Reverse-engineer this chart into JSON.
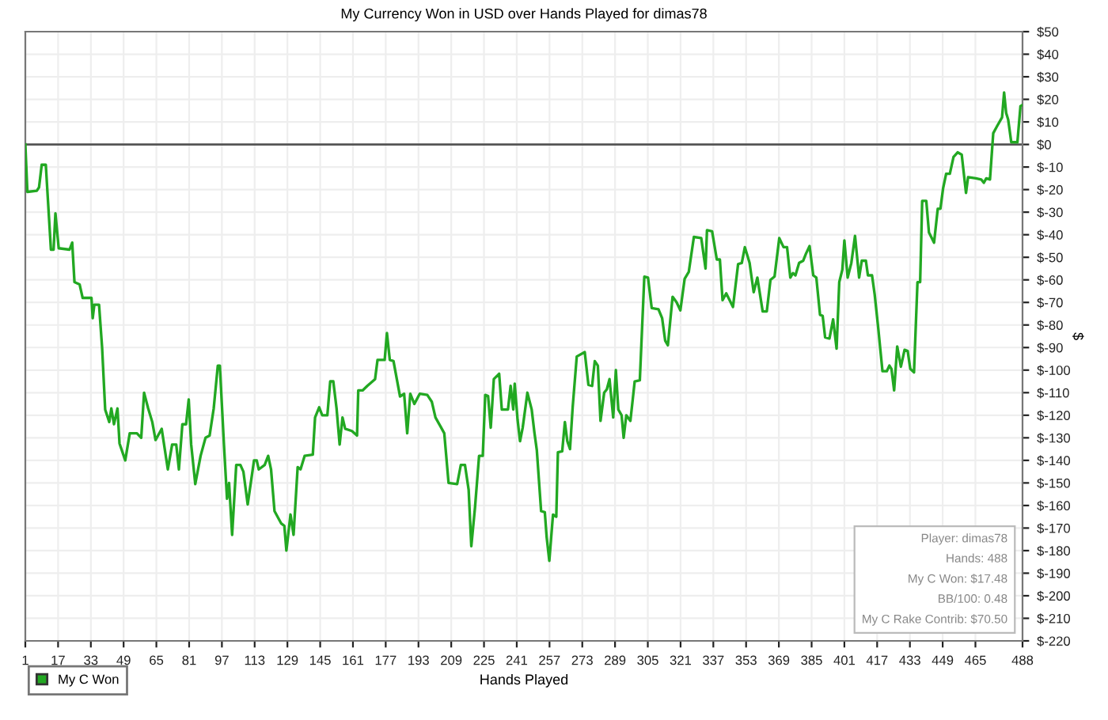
{
  "chart_data": {
    "type": "line",
    "title": "My Currency Won in USD over Hands Played for dimas78",
    "xlabel": "Hands Played",
    "ylabel": "$",
    "xlim": [
      1,
      488
    ],
    "xticks": [
      1,
      17,
      33,
      49,
      65,
      81,
      97,
      113,
      129,
      145,
      161,
      177,
      193,
      209,
      225,
      241,
      257,
      273,
      289,
      305,
      321,
      337,
      353,
      369,
      385,
      401,
      417,
      433,
      449,
      465,
      488
    ],
    "ylim": [
      -220,
      50
    ],
    "yticks": [
      {
        "value": 50,
        "label": "$50"
      },
      {
        "value": 40,
        "label": "$40"
      },
      {
        "value": 30,
        "label": "$30"
      },
      {
        "value": 20,
        "label": "$20"
      },
      {
        "value": 10,
        "label": "$10"
      },
      {
        "value": 0,
        "label": "$0"
      },
      {
        "value": -10,
        "label": "$-10"
      },
      {
        "value": -20,
        "label": "$-20"
      },
      {
        "value": -30,
        "label": "$-30"
      },
      {
        "value": -40,
        "label": "$-40"
      },
      {
        "value": -50,
        "label": "$-50"
      },
      {
        "value": -60,
        "label": "$-60"
      },
      {
        "value": -70,
        "label": "$-70"
      },
      {
        "value": -80,
        "label": "$-80"
      },
      {
        "value": -90,
        "label": "$-90"
      },
      {
        "value": -100,
        "label": "$-100"
      },
      {
        "value": -110,
        "label": "$-110"
      },
      {
        "value": -120,
        "label": "$-120"
      },
      {
        "value": -130,
        "label": "$-130"
      },
      {
        "value": -140,
        "label": "$-140"
      },
      {
        "value": -150,
        "label": "$-150"
      },
      {
        "value": -160,
        "label": "$-160"
      },
      {
        "value": -170,
        "label": "$-170"
      },
      {
        "value": -180,
        "label": "$-180"
      },
      {
        "value": -190,
        "label": "$-190"
      },
      {
        "value": -200,
        "label": "$-200"
      },
      {
        "value": -210,
        "label": "$-210"
      },
      {
        "value": -220,
        "label": "$-220"
      }
    ],
    "grid": true,
    "legend": "bottom left",
    "marker": "none",
    "line_style": "solid",
    "ref_lines": [
      {
        "axis": "y",
        "value": 0,
        "label": null,
        "color": "#555555"
      }
    ],
    "annotations": [
      "Player: dimas78",
      "Hands: 488",
      "My C Won: $17.48",
      "BB/100: 0.48",
      "My C Rake Contrib: $70.50"
    ],
    "series": [
      {
        "name": "My C Won",
        "color": "#22a822",
        "x": [
          1,
          2,
          6.6,
          7.7,
          9,
          11,
          13.5,
          14.8,
          15.7,
          17.3,
          22.6,
          23.9,
          25,
          27.5,
          29,
          33.3,
          33.9,
          34.7,
          37,
          38.5,
          40,
          42,
          43,
          44.3,
          46,
          47,
          49.8,
          52,
          55.5,
          57.6,
          59,
          61,
          63,
          64.6,
          67.6,
          70.6,
          72.7,
          74.7,
          76,
          77.7,
          79.5,
          80.8,
          82,
          84,
          86.6,
          89,
          91,
          93,
          95,
          96,
          98,
          99.5,
          100.5,
          102,
          104,
          106,
          107.5,
          109.6,
          112.7,
          114,
          115,
          117.9,
          119.6,
          121,
          122.7,
          126,
          127.5,
          128.5,
          130.5,
          132,
          134,
          135.4,
          137.4,
          141.4,
          142.5,
          144.5,
          146,
          148.5,
          149.9,
          151.4,
          153,
          154.5,
          155.9,
          157.2,
          160.5,
          163,
          163.6,
          165.7,
          168,
          171.8,
          173,
          176.5,
          177.6,
          179,
          180.8,
          184,
          186,
          187.5,
          189,
          191,
          193.6,
          197.3,
          199.5,
          201.3,
          203.8,
          205.6,
          207.7,
          211.9,
          213.7,
          215.7,
          217.5,
          218.8,
          220.6,
          222.6,
          224.4,
          225.6,
          227,
          228.3,
          229.8,
          232.4,
          233.7,
          236.7,
          238,
          239.3,
          240,
          241.4,
          242.6,
          243.9,
          246.2,
          248.3,
          249.6,
          250.8,
          252.9,
          254.7,
          255.6,
          256.9,
          258.7,
          260.3,
          261.1,
          263.2,
          264.5,
          265.7,
          267,
          268.3,
          270.3,
          274.2,
          276,
          277.8,
          279.1,
          280.6,
          281.9,
          283.7,
          285,
          286.3,
          288.1,
          289.4,
          290.6,
          292.2,
          293.2,
          294.5,
          296.5,
          298.6,
          301.1,
          303.3,
          305.1,
          306.9,
          310.2,
          312,
          313.5,
          314.8,
          317.1,
          319.1,
          320.9,
          323,
          325,
          327.5,
          331.1,
          333.2,
          333.9,
          336.4,
          338.7,
          340.2,
          341.5,
          343.3,
          346.6,
          349.1,
          350.9,
          352.4,
          354.7,
          356.7,
          358.5,
          361.1,
          363.1,
          364.9,
          366.9,
          369.2,
          371.3,
          373,
          374.6,
          375.9,
          377.1,
          378.9,
          380.9,
          382.2,
          384,
          385.8,
          387.3,
          389.1,
          390.4,
          391.6,
          393.7,
          395.5,
          397.2,
          398.5,
          400,
          401,
          402.6,
          404.4,
          406.2,
          408.2,
          409.5,
          411.5,
          412.5,
          414.5,
          415.8,
          417.6,
          419.6,
          421.7,
          423,
          424,
          425.3,
          426.8,
          428.6,
          430.4,
          431.9,
          433.2,
          435,
          436.7,
          438,
          439,
          441,
          442.3,
          444.8,
          446.6,
          447.9,
          449.2,
          450.7,
          452.5,
          454.3,
          456.3,
          458.3,
          460.4,
          461.4,
          465.2,
          467.8,
          469.1,
          470.3,
          472.1,
          473.7,
          475.5,
          478,
          479,
          480,
          481,
          482.5,
          485.5,
          487,
          488
        ],
        "values": [
          0,
          -21,
          -20.5,
          -19,
          -9,
          -9,
          -46.6,
          -46.6,
          -30.5,
          -46,
          -46.6,
          -43.5,
          -61,
          -62,
          -68,
          -68,
          -77,
          -71,
          -71,
          -90,
          -117.5,
          -123,
          -117,
          -124,
          -117,
          -132.5,
          -140,
          -128,
          -128,
          -130,
          -110,
          -117,
          -123,
          -131,
          -126,
          -144,
          -133,
          -133,
          -144,
          -124,
          -124,
          -113,
          -133,
          -150.5,
          -138,
          -130,
          -129,
          -117,
          -98,
          -98,
          -133,
          -157,
          -150,
          -173,
          -142,
          -142,
          -145,
          -159.5,
          -140,
          -140,
          -144,
          -142,
          -138,
          -144,
          -162.5,
          -168,
          -169,
          -180,
          -164,
          -173,
          -143,
          -144,
          -138,
          -137.5,
          -121,
          -116.5,
          -120,
          -120,
          -105,
          -105,
          -117,
          -133,
          -121,
          -126,
          -127,
          -129,
          -109,
          -109,
          -107,
          -104,
          -95.5,
          -95.5,
          -83.6,
          -95.5,
          -96,
          -111.7,
          -110.5,
          -128,
          -110.5,
          -115,
          -110.5,
          -111,
          -114,
          -121,
          -125,
          -128,
          -150,
          -150.5,
          -142,
          -142,
          -153,
          -178,
          -161,
          -138,
          -138,
          -111,
          -111.5,
          -125.5,
          -104,
          -101.6,
          -117.5,
          -117.5,
          -107,
          -117.5,
          -106,
          -122,
          -131.5,
          -125.5,
          -110,
          -117.5,
          -127.5,
          -135.5,
          -162.5,
          -163,
          -174,
          -184.5,
          -164,
          -165,
          -136.4,
          -136,
          -123,
          -131.5,
          -135,
          -116.5,
          -94,
          -92,
          -106.5,
          -107,
          -96,
          -98,
          -122.5,
          -110,
          -108.5,
          -104,
          -121,
          -100,
          -117.5,
          -120,
          -130,
          -120,
          -122.5,
          -105,
          -104.5,
          -58.6,
          -59,
          -72.5,
          -73,
          -77,
          -87,
          -89,
          -67.5,
          -70,
          -73.5,
          -59.5,
          -56.5,
          -41,
          -41.5,
          -55,
          -38,
          -38.5,
          -51,
          -51,
          -69,
          -66,
          -72,
          -53,
          -52.5,
          -45.5,
          -52.5,
          -65.5,
          -59,
          -74,
          -74,
          -60,
          -58.5,
          -41.5,
          -45.5,
          -45.5,
          -59,
          -57,
          -58,
          -52.5,
          -51.5,
          -48.5,
          -45,
          -58,
          -59,
          -75.5,
          -76,
          -85.5,
          -86,
          -77.5,
          -90.5,
          -61,
          -55.5,
          -42.5,
          -59,
          -52.5,
          -40.5,
          -59,
          -51.5,
          -51.5,
          -58,
          -58,
          -66.5,
          -82,
          -100.5,
          -100.5,
          -98,
          -99.5,
          -109,
          -89.5,
          -98.5,
          -91,
          -91.5,
          -99.5,
          -101,
          -61,
          -61,
          -25,
          -25,
          -39,
          -43.5,
          -28.5,
          -28.5,
          -19.5,
          -13,
          -13,
          -5.5,
          -3.5,
          -4.5,
          -21.5,
          -14.5,
          -15,
          -15.5,
          -17,
          -15,
          -15.5,
          5,
          8,
          12,
          23,
          14,
          11,
          1,
          1,
          17,
          17.5
        ]
      }
    ]
  }
}
